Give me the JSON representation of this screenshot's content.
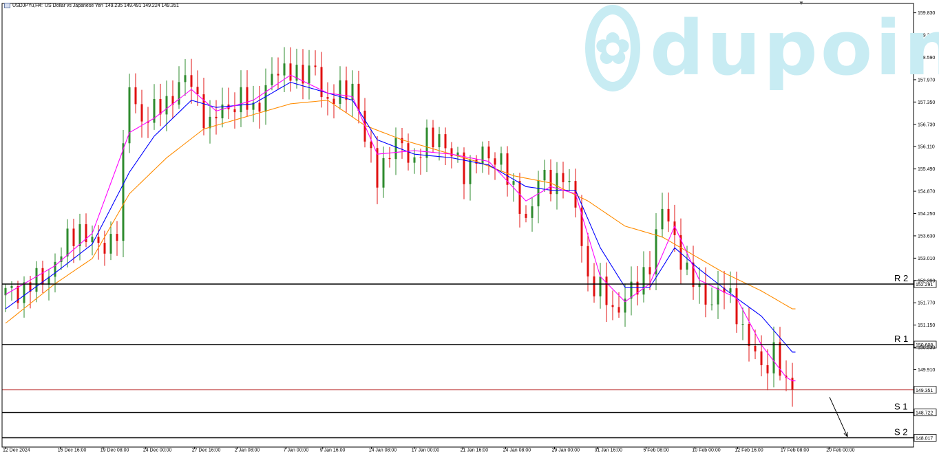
{
  "header": {
    "symbol": "USDJPYu,H4:",
    "description": "US Dollar vs Japanese Yen",
    "ohlc": "149.235 149.491 149.224 149.351"
  },
  "watermark": {
    "brand": "dupoin",
    "logo_icon": "lotus-icon"
  },
  "colors": {
    "bull": "#2e8b2e",
    "bear": "#e01010",
    "ma_fast": "#ff00ff",
    "ma_mid": "#0000ff",
    "ma_slow": "#ff8c00",
    "current_line": "#c04040",
    "level_line": "#000000",
    "watermark": "#c8ecf3"
  },
  "chart_data": {
    "type": "candlestick",
    "title": "",
    "xlabel": "",
    "ylabel": "",
    "ylim": [
      147.76,
      160.09
    ],
    "grid": false,
    "y_ticks": [
      "159.830",
      "159.210",
      "158.590",
      "157.970",
      "157.350",
      "156.730",
      "156.110",
      "155.490",
      "154.870",
      "154.250",
      "153.630",
      "153.010",
      "152.390",
      "151.770",
      "151.150",
      "150.530",
      "149.910"
    ],
    "x_ticks": [
      "12 Dec 2024",
      "16 Dec 16:00",
      "19 Dec 08:00",
      "24 Dec 00:00",
      "27 Dec 16:00",
      "2 Jan 08:00",
      "7 Jan 00:00",
      "9 Jan 16:00",
      "14 Jan 08:00",
      "17 Jan 00:00",
      "21 Jan 16:00",
      "24 Jan 08:00",
      "29 Jan 00:00",
      "31 Jan 16:00",
      "5 Feb 08:00",
      "10 Feb 00:00",
      "12 Feb 16:00",
      "17 Feb 08:00",
      "20 Feb 00:00"
    ],
    "close_path": [
      [
        0,
        152.0
      ],
      [
        6,
        152.4
      ],
      [
        12,
        153.9
      ],
      [
        15,
        153.2
      ],
      [
        18,
        153.8
      ],
      [
        20,
        157.8
      ],
      [
        22,
        156.9
      ],
      [
        24,
        157.0
      ],
      [
        26,
        157.4
      ],
      [
        28,
        157.8
      ],
      [
        30,
        157.9
      ],
      [
        33,
        156.6
      ],
      [
        35,
        157.2
      ],
      [
        38,
        157.4
      ],
      [
        40,
        157.1
      ],
      [
        42,
        157.8
      ],
      [
        44,
        158.1
      ],
      [
        46,
        158.4
      ],
      [
        48,
        157.9
      ],
      [
        50,
        158.4
      ],
      [
        52,
        157.2
      ],
      [
        54,
        157.6
      ],
      [
        56,
        157.9
      ],
      [
        58,
        156.2
      ],
      [
        60,
        155.4
      ],
      [
        62,
        155.9
      ],
      [
        64,
        156.2
      ],
      [
        66,
        155.7
      ],
      [
        68,
        156.2
      ],
      [
        70,
        156.5
      ],
      [
        72,
        155.8
      ],
      [
        74,
        155.4
      ],
      [
        76,
        155.9
      ],
      [
        78,
        155.7
      ],
      [
        80,
        155.9
      ],
      [
        82,
        154.7
      ],
      [
        84,
        154.1
      ],
      [
        86,
        155.2
      ],
      [
        88,
        155.0
      ],
      [
        90,
        155.5
      ],
      [
        92,
        154.3
      ],
      [
        94,
        152.5
      ],
      [
        96,
        152.1
      ],
      [
        98,
        151.5
      ],
      [
        100,
        152.0
      ],
      [
        102,
        152.1
      ],
      [
        104,
        153.0
      ],
      [
        106,
        154.3
      ],
      [
        108,
        153.6
      ],
      [
        110,
        152.6
      ],
      [
        112,
        152.0
      ],
      [
        114,
        151.9
      ],
      [
        116,
        152.1
      ],
      [
        118,
        151.6
      ],
      [
        120,
        150.6
      ],
      [
        122,
        149.9
      ],
      [
        124,
        150.5
      ],
      [
        126,
        149.3
      ],
      [
        127,
        149.35
      ]
    ],
    "ma_fast_path": [
      [
        0,
        152.0
      ],
      [
        8,
        152.8
      ],
      [
        14,
        153.7
      ],
      [
        20,
        156.5
      ],
      [
        24,
        156.9
      ],
      [
        30,
        157.7
      ],
      [
        34,
        157.1
      ],
      [
        40,
        157.4
      ],
      [
        46,
        158.1
      ],
      [
        52,
        157.6
      ],
      [
        56,
        157.5
      ],
      [
        60,
        155.9
      ],
      [
        66,
        156.0
      ],
      [
        72,
        155.9
      ],
      [
        78,
        155.7
      ],
      [
        84,
        154.6
      ],
      [
        88,
        155.0
      ],
      [
        92,
        154.8
      ],
      [
        96,
        152.5
      ],
      [
        100,
        151.8
      ],
      [
        104,
        152.3
      ],
      [
        108,
        153.9
      ],
      [
        112,
        152.4
      ],
      [
        118,
        151.9
      ],
      [
        122,
        150.6
      ],
      [
        126,
        149.7
      ],
      [
        127,
        149.6
      ]
    ],
    "ma_mid_path": [
      [
        0,
        151.6
      ],
      [
        8,
        152.6
      ],
      [
        14,
        153.4
      ],
      [
        20,
        155.4
      ],
      [
        24,
        156.4
      ],
      [
        30,
        157.4
      ],
      [
        34,
        157.2
      ],
      [
        40,
        157.3
      ],
      [
        46,
        157.9
      ],
      [
        52,
        157.6
      ],
      [
        56,
        157.4
      ],
      [
        60,
        156.3
      ],
      [
        66,
        155.9
      ],
      [
        72,
        155.8
      ],
      [
        78,
        155.6
      ],
      [
        84,
        155.0
      ],
      [
        88,
        154.9
      ],
      [
        92,
        154.9
      ],
      [
        96,
        153.3
      ],
      [
        100,
        152.2
      ],
      [
        104,
        152.2
      ],
      [
        108,
        153.3
      ],
      [
        112,
        152.7
      ],
      [
        118,
        151.9
      ],
      [
        122,
        151.4
      ],
      [
        126,
        150.6
      ],
      [
        127,
        150.4
      ]
    ],
    "ma_slow_path": [
      [
        0,
        151.2
      ],
      [
        8,
        152.3
      ],
      [
        14,
        153.0
      ],
      [
        20,
        154.8
      ],
      [
        26,
        155.8
      ],
      [
        32,
        156.6
      ],
      [
        40,
        157.0
      ],
      [
        46,
        157.3
      ],
      [
        52,
        157.4
      ],
      [
        58,
        156.7
      ],
      [
        64,
        156.3
      ],
      [
        70,
        156.0
      ],
      [
        76,
        155.7
      ],
      [
        82,
        155.3
      ],
      [
        88,
        155.1
      ],
      [
        94,
        154.6
      ],
      [
        100,
        153.9
      ],
      [
        106,
        153.6
      ],
      [
        110,
        153.2
      ],
      [
        116,
        152.6
      ],
      [
        122,
        152.1
      ],
      [
        127,
        151.6
      ]
    ],
    "n_bars": 128,
    "annotations": {
      "arrow": {
        "from": [
          128,
          149.15
        ],
        "to": [
          131.5,
          148.05
        ]
      }
    },
    "current_price": 149.351,
    "price_labels": [
      {
        "name": "R 2",
        "value": 152.291,
        "label": "152.291"
      },
      {
        "name": "R 1",
        "value": 150.608,
        "label": "150.608"
      },
      {
        "name": "",
        "value": 149.351,
        "label": "149.351"
      },
      {
        "name": "S 1",
        "value": 148.722,
        "label": "148.722"
      },
      {
        "name": "S 2",
        "value": 148.017,
        "label": "148.017"
      }
    ]
  }
}
